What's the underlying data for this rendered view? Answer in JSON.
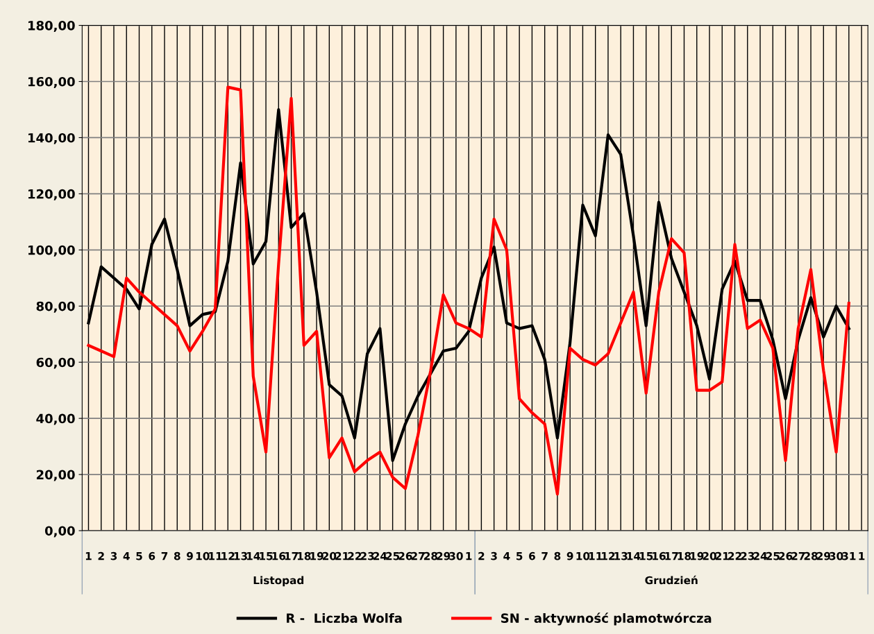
{
  "chart_data": {
    "type": "line",
    "categories": [
      "1",
      "2",
      "3",
      "4",
      "5",
      "6",
      "7",
      "8",
      "9",
      "10",
      "11",
      "12",
      "13",
      "14",
      "15",
      "16",
      "17",
      "18",
      "19",
      "20",
      "21",
      "22",
      "23",
      "24",
      "25",
      "26",
      "27",
      "28",
      "29",
      "30",
      "1",
      "2",
      "3",
      "4",
      "5",
      "6",
      "7",
      "8",
      "9",
      "10",
      "11",
      "12",
      "13",
      "14",
      "15",
      "16",
      "17",
      "18",
      "19",
      "20",
      "21",
      "22",
      "23",
      "24",
      "25",
      "26",
      "27",
      "28",
      "29",
      "30",
      "31",
      "1"
    ],
    "series": [
      {
        "name": "R -  Liczba Wolfa",
        "color": "#000000",
        "values": [
          74,
          94,
          90,
          86,
          79,
          102,
          111,
          93,
          73,
          77,
          78,
          96,
          131,
          95,
          103,
          150,
          108,
          113,
          85,
          52,
          48,
          33,
          63,
          72,
          25,
          38,
          48,
          56,
          64,
          65,
          71,
          90,
          101,
          74,
          72,
          73,
          61,
          33,
          67,
          116,
          105,
          141,
          134,
          105,
          73,
          117,
          97,
          85,
          73,
          54,
          86,
          96,
          82,
          82,
          68,
          47,
          68,
          83,
          69,
          80,
          72,
          null
        ]
      },
      {
        "name": "SN - aktywność plamotwórcza",
        "color": "#ff0000",
        "values": [
          66,
          64,
          62,
          90,
          85,
          81,
          77,
          73,
          64,
          71,
          79,
          158,
          157,
          55,
          28,
          95,
          154,
          66,
          71,
          26,
          33,
          21,
          25,
          28,
          19,
          15,
          34,
          57,
          84,
          74,
          72,
          69,
          111,
          100,
          47,
          42,
          38,
          13,
          65,
          61,
          59,
          63,
          74,
          85,
          49,
          85,
          104,
          99,
          50,
          50,
          53,
          102,
          72,
          75,
          65,
          25,
          72,
          93,
          57,
          28,
          81,
          null
        ]
      }
    ],
    "ylim": [
      0,
      180
    ],
    "yticks": [
      {
        "value": 0,
        "label": "0,00"
      },
      {
        "value": 20,
        "label": "20,00"
      },
      {
        "value": 40,
        "label": "40,00"
      },
      {
        "value": 60,
        "label": "60,00"
      },
      {
        "value": 80,
        "label": "80,00"
      },
      {
        "value": 100,
        "label": "100,00"
      },
      {
        "value": 120,
        "label": "120,00"
      },
      {
        "value": 140,
        "label": "140,00"
      },
      {
        "value": 160,
        "label": "160,00"
      },
      {
        "value": 180,
        "label": "180,00"
      }
    ],
    "annotations": [
      "Listopad",
      "Grudzień"
    ],
    "grid": true,
    "legend": "bottom",
    "marker": "none",
    "line_style": "solid"
  }
}
